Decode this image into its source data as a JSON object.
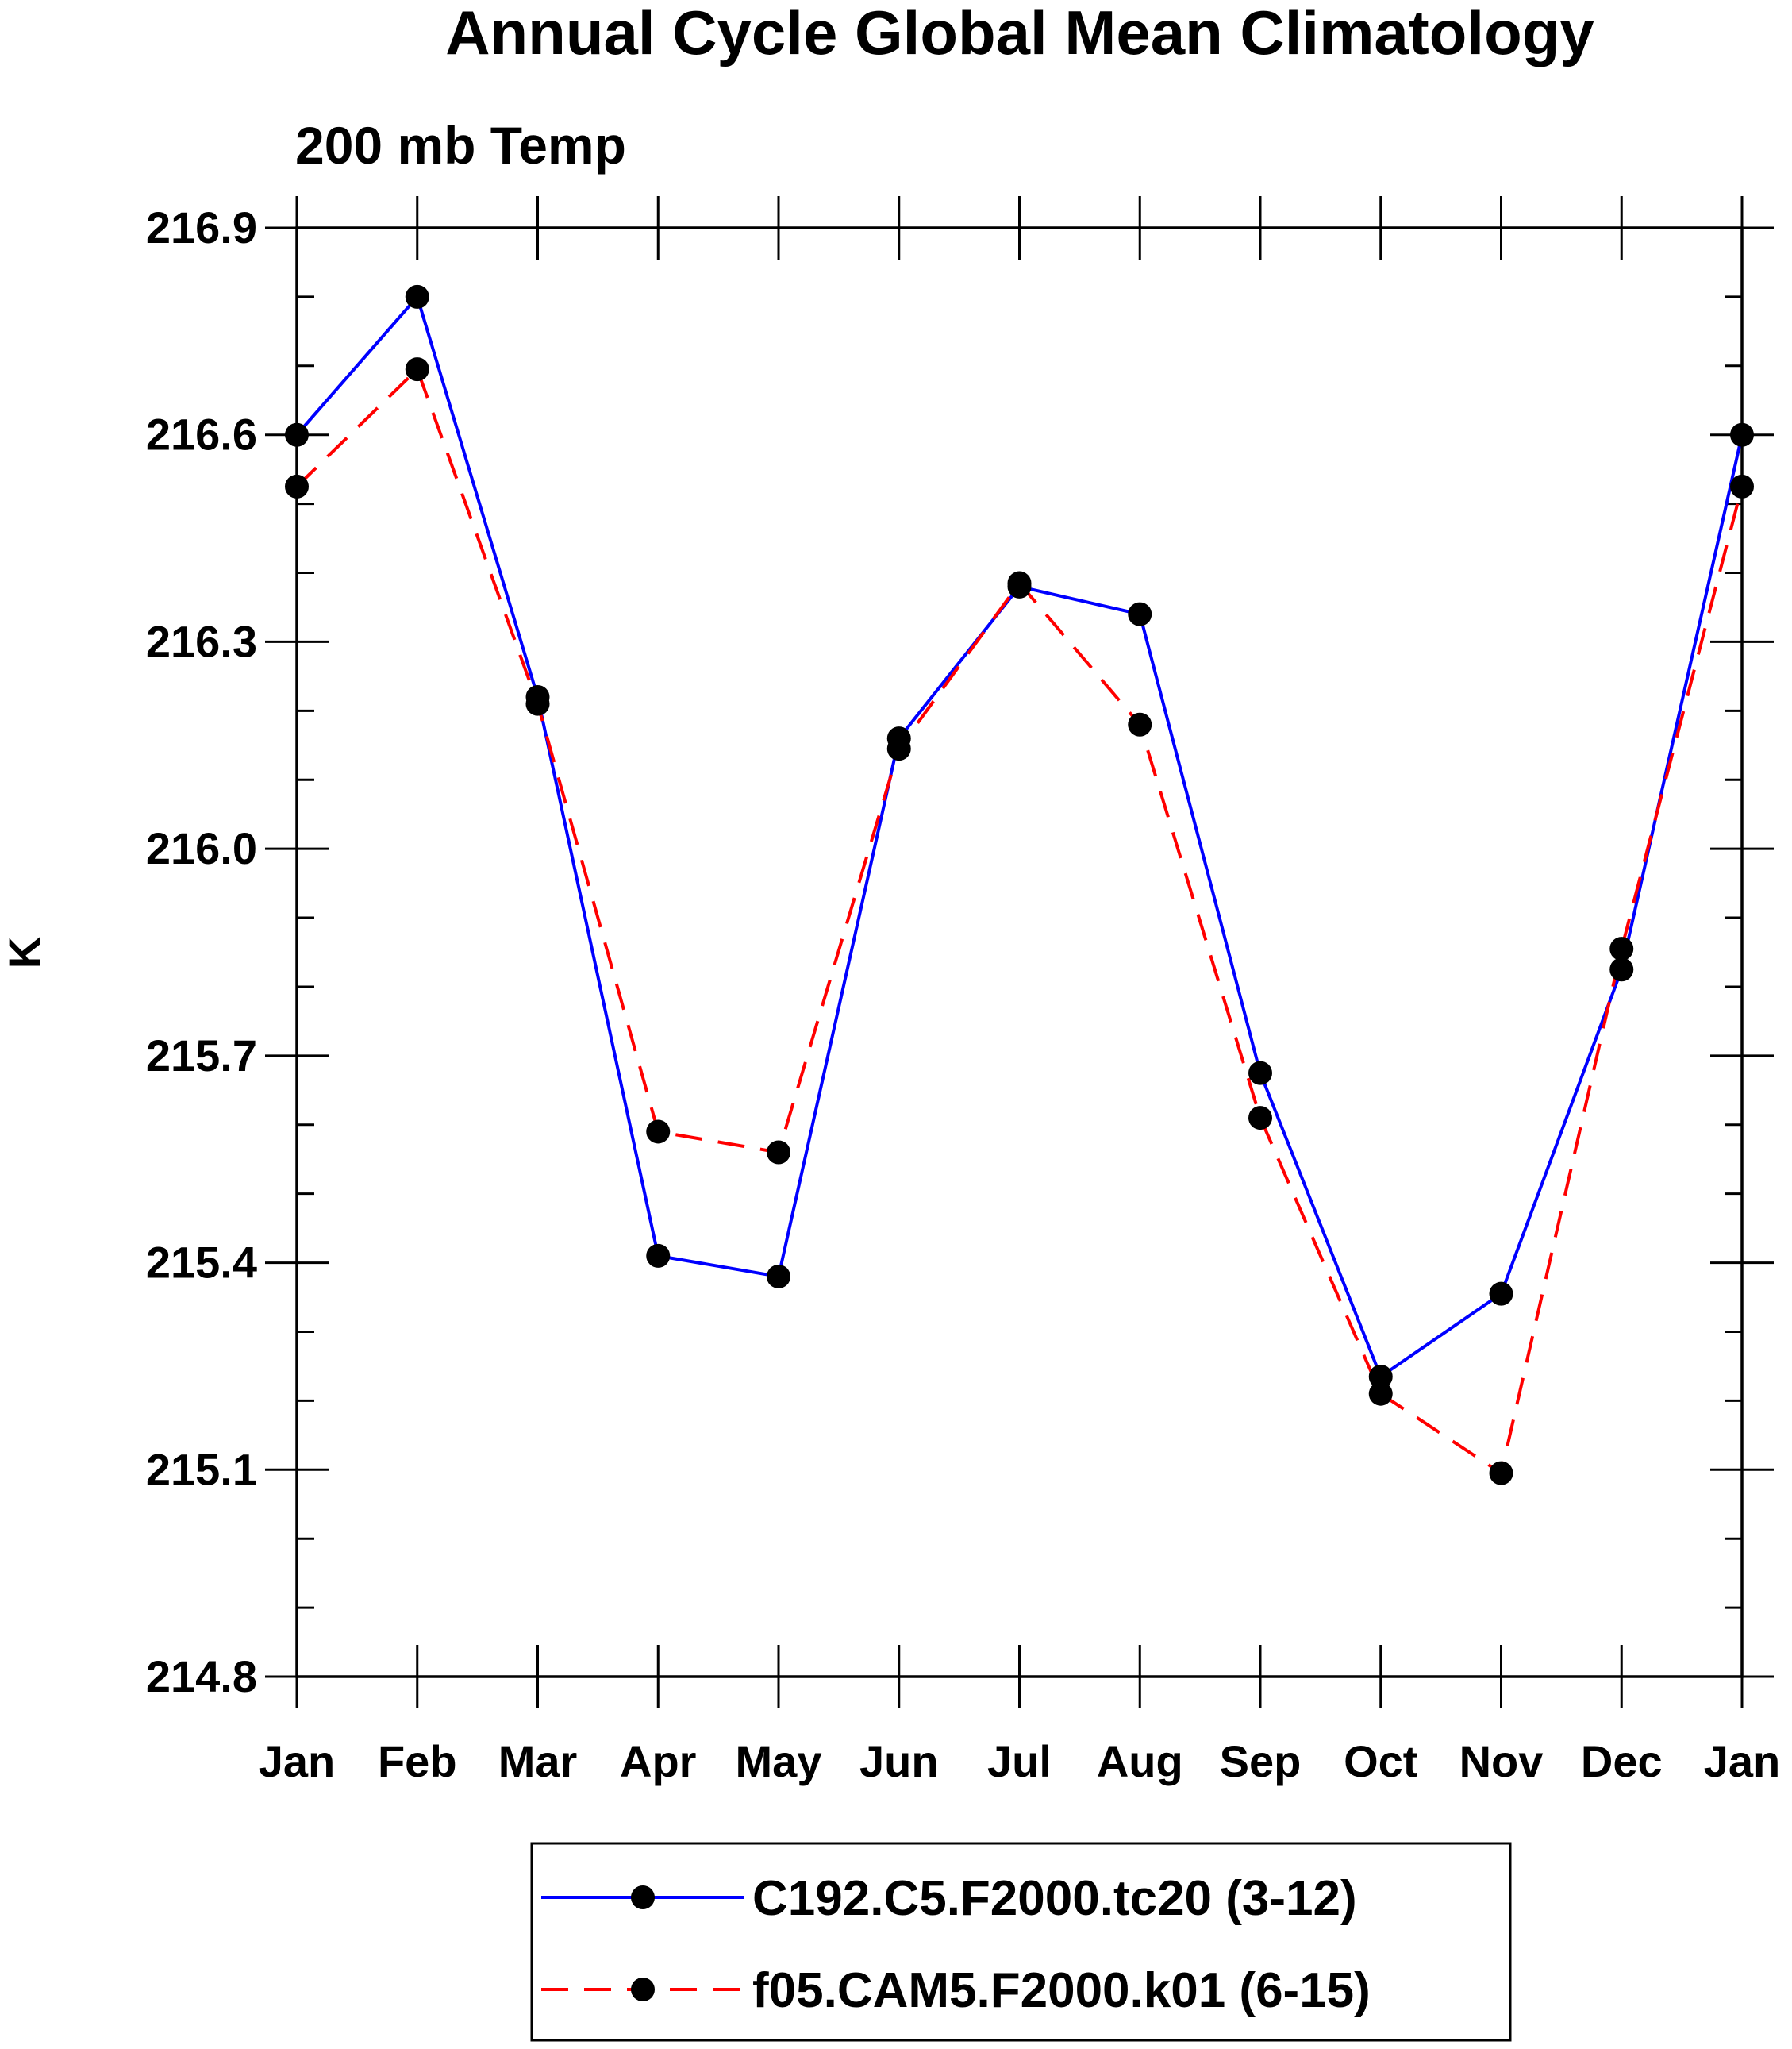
{
  "chart_data": {
    "type": "line",
    "title": "Annual Cycle Global Mean Climatology",
    "subtitle": "200 mb Temp",
    "xlabel": "",
    "ylabel": "K",
    "categories": [
      "Jan",
      "Feb",
      "Mar",
      "Apr",
      "May",
      "Jun",
      "Jul",
      "Aug",
      "Sep",
      "Oct",
      "Nov",
      "Dec",
      "Jan"
    ],
    "ylim": [
      214.8,
      216.9
    ],
    "yticks": [
      "216.9",
      "216.6",
      "216.3",
      "216.0",
      "215.7",
      "215.4",
      "215.1",
      "214.8"
    ],
    "grid": false,
    "legend_position": "bottom-center",
    "series": [
      {
        "name": "C192.C5.F2000.tc20 (3-12)",
        "color": "#0000ff",
        "dash": "solid",
        "marker": "filled-circle",
        "values": [
          216.6,
          216.8,
          216.22,
          215.41,
          215.38,
          216.16,
          216.38,
          216.34,
          215.675,
          215.235,
          215.355,
          215.825,
          216.6
        ]
      },
      {
        "name": "f05.CAM5.F2000.k01 (6-15)",
        "color": "#ff0000",
        "dash": "dashed",
        "marker": "filled-circle",
        "values": [
          216.525,
          216.695,
          216.21,
          215.59,
          215.56,
          216.145,
          216.385,
          216.18,
          215.61,
          215.21,
          215.095,
          215.855,
          216.525
        ]
      }
    ]
  }
}
